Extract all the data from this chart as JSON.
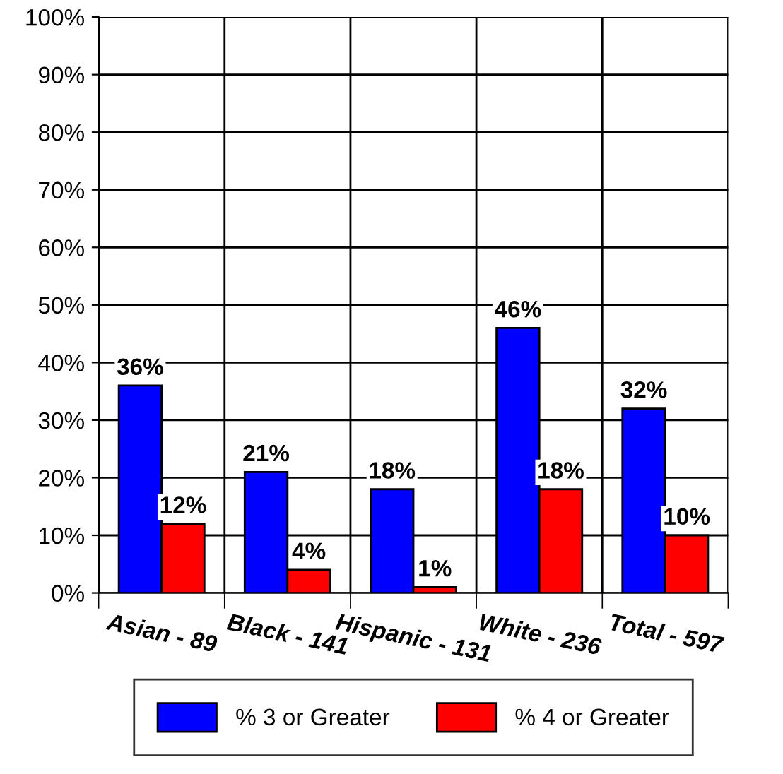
{
  "chart_data": {
    "type": "bar",
    "categories": [
      "Asian - 89",
      "Black - 141",
      "Hispanic - 131",
      "White - 236",
      "Total - 597"
    ],
    "series": [
      {
        "name": "% 3 or Greater",
        "color": "#0000ff",
        "values": [
          36,
          21,
          18,
          46,
          32
        ]
      },
      {
        "name": "% 4 or Greater",
        "color": "#ff0000",
        "values": [
          12,
          4,
          1,
          18,
          10
        ]
      }
    ],
    "value_labels": [
      [
        "36%",
        "21%",
        "18%",
        "46%",
        "32%"
      ],
      [
        "12%",
        "4%",
        "1%",
        "18%",
        "10%"
      ]
    ],
    "ylim": [
      0,
      100
    ],
    "yticks": [
      {
        "value": 0,
        "label": "0%"
      },
      {
        "value": 10,
        "label": "10%"
      },
      {
        "value": 20,
        "label": "20%"
      },
      {
        "value": 30,
        "label": "30%"
      },
      {
        "value": 40,
        "label": "40%"
      },
      {
        "value": 50,
        "label": "50%"
      },
      {
        "value": 60,
        "label": "60%"
      },
      {
        "value": 70,
        "label": "70%"
      },
      {
        "value": 80,
        "label": "80%"
      },
      {
        "value": 90,
        "label": "90%"
      },
      {
        "value": 100,
        "label": "100%"
      }
    ],
    "grid": true,
    "legend": "bottom"
  }
}
